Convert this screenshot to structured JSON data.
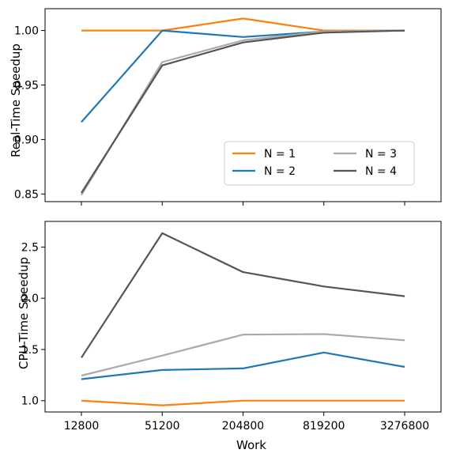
{
  "chart_data": [
    {
      "type": "line",
      "title": "",
      "xlabel": "",
      "ylabel": "Real-Time Speedup",
      "x": [
        12800,
        51200,
        204800,
        819200,
        3276800
      ],
      "x_scale": "log",
      "ylim": [
        0.843,
        1.02
      ],
      "yticks": [
        "0.85",
        "0.90",
        "0.95",
        "1.00"
      ],
      "legend": {
        "placement": "lower-right",
        "columns": 2
      },
      "series": [
        {
          "name": "N = 1",
          "color": "#ff7f0e",
          "values": [
            1.0,
            1.0,
            1.011,
            1.0,
            1.0
          ]
        },
        {
          "name": "N = 2",
          "color": "#1f77b4",
          "values": [
            0.916,
            1.0,
            0.994,
            0.999,
            1.0
          ]
        },
        {
          "name": "N = 3",
          "color": "#aaaaaa",
          "values": [
            0.849,
            0.971,
            0.991,
            0.999,
            1.0
          ]
        },
        {
          "name": "N = 4",
          "color": "#555555",
          "values": [
            0.851,
            0.968,
            0.989,
            0.998,
            1.0
          ]
        }
      ]
    },
    {
      "type": "line",
      "title": "",
      "xlabel": "Work",
      "ylabel": "CPU-Time Speedup",
      "x": [
        12800,
        51200,
        204800,
        819200,
        3276800
      ],
      "x_scale": "log",
      "xticks": [
        "12800",
        "51200",
        "204800",
        "819200",
        "3276800"
      ],
      "ylim": [
        0.89,
        2.75
      ],
      "yticks": [
        "1.0",
        "1.5",
        "2.0",
        "2.5"
      ],
      "series": [
        {
          "color": "#ff7f0e",
          "values": [
            1.0,
            0.955,
            1.0,
            1.0,
            1.0
          ]
        },
        {
          "color": "#1f77b4",
          "values": [
            1.21,
            1.3,
            1.315,
            1.47,
            1.33
          ]
        },
        {
          "color": "#aaaaaa",
          "values": [
            1.245,
            1.44,
            1.645,
            1.65,
            1.59
          ]
        },
        {
          "color": "#555555",
          "values": [
            1.42,
            2.635,
            2.255,
            2.115,
            2.02
          ]
        }
      ]
    }
  ]
}
